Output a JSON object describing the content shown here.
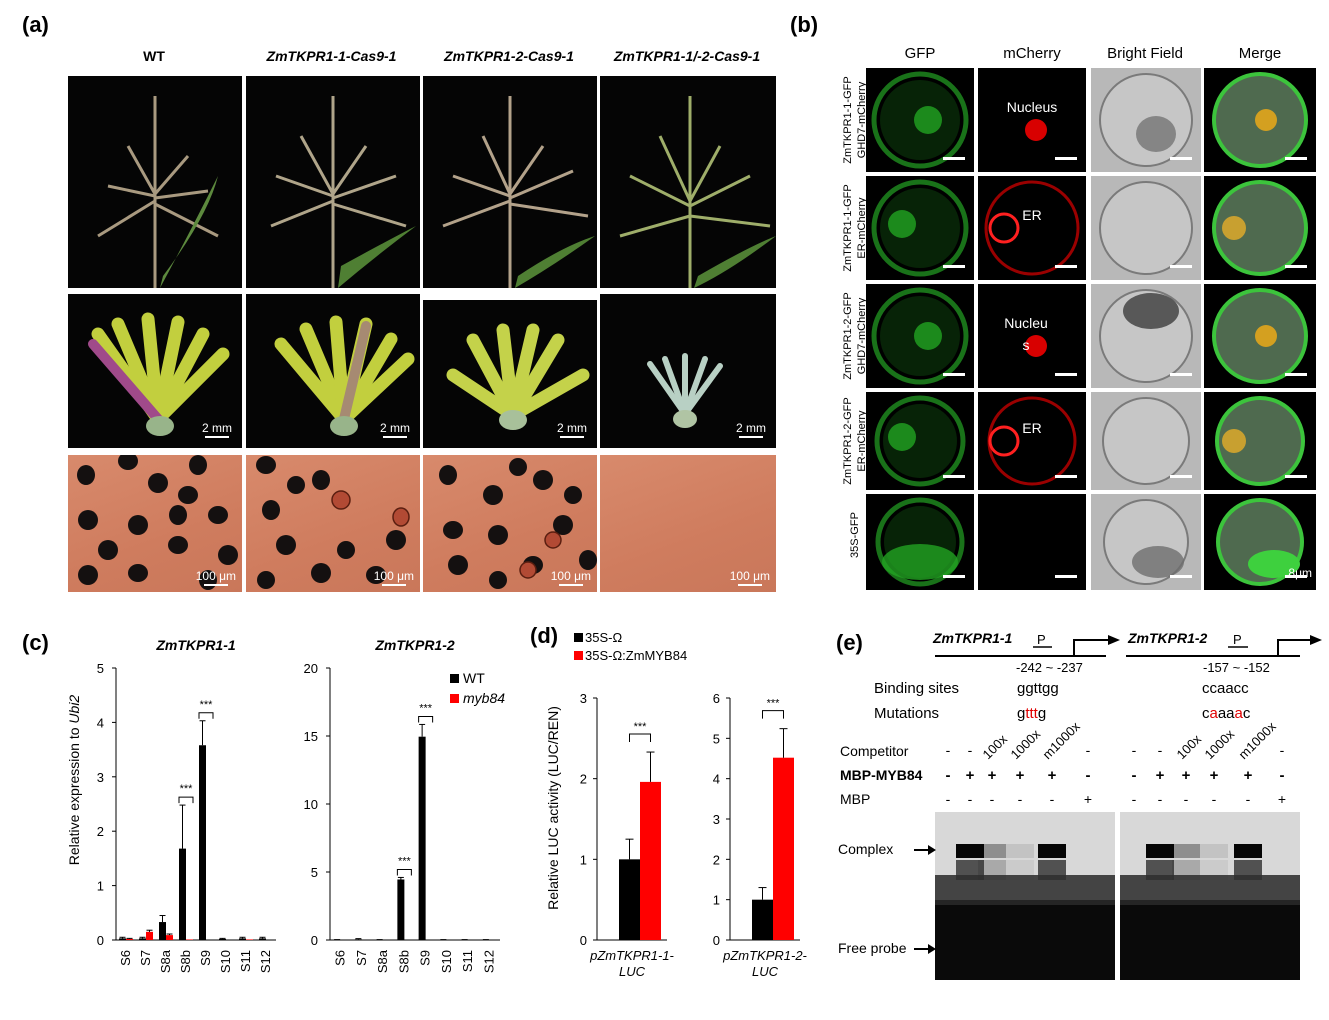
{
  "panel_a": {
    "label": "(a)",
    "columns": [
      "WT",
      "ZmTKPR1-1-Cas9-1",
      "ZmTKPR1-2-Cas9-1",
      "ZmTKPR1-1/-2-Cas9-1"
    ],
    "scale_mm": "2 mm",
    "scale_um": "100 μm"
  },
  "panel_b": {
    "label": "(b)",
    "columns": [
      "GFP",
      "mCherry",
      "Bright Field",
      "Merge"
    ],
    "rows": [
      {
        "line1": "ZmTKPR1-1-GFP",
        "line2": "GHD7-mCherry",
        "mcherry_text": "Nucleus"
      },
      {
        "line1": "ZmTKPR1-1-GFP",
        "line2": "ER-mCherry",
        "mcherry_text": "ER"
      },
      {
        "line1": "ZmTKPR1-2-GFP",
        "line2": "GHD7-mCherry",
        "mcherry_text": "Nucleu\ns"
      },
      {
        "line1": "ZmTKPR1-2-GFP",
        "line2": "ER-mCherry",
        "mcherry_text": "ER"
      },
      {
        "line1": "35S-GFP",
        "line2": "",
        "mcherry_text": ""
      }
    ],
    "scale_text": "8μm"
  },
  "panel_c": {
    "label": "(c)",
    "ylabel_prefix": "Relative expression to ",
    "ylabel_gene": "Ubi2",
    "legend": [
      "WT",
      "myb84"
    ],
    "significance": "***"
  },
  "panel_d": {
    "label": "(d)",
    "legend": [
      "35S-Ω",
      "35S-Ω:ZmMYB84"
    ],
    "ylabel": "Relative LUC activity  (LUC/REN)",
    "significance": "***"
  },
  "panel_e": {
    "label": "(e)",
    "genes": [
      {
        "name": "ZmTKPR1-1",
        "position": "-242 ~ -237",
        "site": "ggttgg",
        "mutation": [
          "g",
          "ttt",
          "g"
        ]
      },
      {
        "name": "ZmTKPR1-2",
        "position": "-157 ~ -152",
        "site": "ccaacc",
        "mutation": [
          "c",
          "a",
          "aa",
          "a",
          "c"
        ]
      }
    ],
    "p_label": "P",
    "binding_label": "Binding sites",
    "mutation_label": "Mutations",
    "row_labels": [
      "Competitor",
      "MBP-MYB84",
      "MBP"
    ],
    "competitor": [
      "-",
      "-",
      "100x",
      "1000x",
      "m1000x",
      "-"
    ],
    "mbp_myb84": [
      "-",
      "+",
      "+",
      "+",
      "+",
      "-"
    ],
    "mbp": [
      "-",
      "-",
      "-",
      "-",
      "-",
      "+"
    ],
    "complex_label": "Complex",
    "free_probe_label": "Free probe"
  },
  "chart_data": [
    {
      "type": "bar",
      "title": "ZmTKPR1-1",
      "categories": [
        "S6",
        "S7",
        "S8a",
        "S8b",
        "S9",
        "S10",
        "S11",
        "S12"
      ],
      "series": [
        {
          "name": "WT",
          "values": [
            0.03,
            0.03,
            0.33,
            1.68,
            3.58,
            0.02,
            0.03,
            0.03
          ],
          "errors": [
            0.02,
            0.02,
            0.12,
            0.8,
            0.45,
            0.01,
            0.02,
            0.02
          ]
        },
        {
          "name": "myb84",
          "values": [
            0.02,
            0.15,
            0.09,
            0.01,
            0.0,
            0.0,
            0.01,
            0.0
          ],
          "errors": [
            0.01,
            0.03,
            0.02,
            0.0,
            0.0,
            0.0,
            0.0,
            0.0
          ]
        }
      ],
      "ylim": [
        0,
        5
      ],
      "yticks": [
        0,
        1,
        2,
        3,
        4,
        5
      ],
      "significance": [
        {
          "category": "S8b",
          "text": "***"
        },
        {
          "category": "S9",
          "text": "***"
        }
      ]
    },
    {
      "type": "bar",
      "title": "ZmTKPR1-2",
      "categories": [
        "S6",
        "S7",
        "S8a",
        "S8b",
        "S9",
        "S10",
        "S11",
        "S12"
      ],
      "series": [
        {
          "name": "WT",
          "values": [
            0.02,
            0.05,
            0.02,
            4.45,
            14.95,
            0.02,
            0.02,
            0.02
          ],
          "errors": [
            0.01,
            0.05,
            0.01,
            0.15,
            0.9,
            0.01,
            0.01,
            0.01
          ]
        },
        {
          "name": "myb84",
          "values": [
            0.0,
            0.0,
            0.0,
            0.0,
            0.0,
            0.0,
            0.0,
            0.0
          ],
          "errors": [
            0,
            0,
            0,
            0,
            0,
            0,
            0,
            0
          ]
        }
      ],
      "ylim": [
        0,
        20
      ],
      "yticks": [
        0,
        5,
        10,
        15,
        20
      ],
      "significance": [
        {
          "category": "S8b",
          "text": "***"
        },
        {
          "category": "S9",
          "text": "***"
        }
      ]
    },
    {
      "type": "bar",
      "categories": [
        "pZmTKPR1-1-\nLUC"
      ],
      "series": [
        {
          "name": "35S-Ω",
          "values": [
            1.0
          ],
          "errors": [
            0.25
          ]
        },
        {
          "name": "35S-Ω:ZmMYB84",
          "values": [
            1.96
          ],
          "errors": [
            0.37
          ]
        }
      ],
      "ylim": [
        0,
        3
      ],
      "yticks": [
        0,
        1,
        2,
        3
      ],
      "significance": [
        {
          "text": "***"
        }
      ]
    },
    {
      "type": "bar",
      "categories": [
        "pZmTKPR1-2-\nLUC"
      ],
      "series": [
        {
          "name": "35S-Ω",
          "values": [
            1.0
          ],
          "errors": [
            0.3
          ]
        },
        {
          "name": "35S-Ω:ZmMYB84",
          "values": [
            4.52
          ],
          "errors": [
            0.72
          ]
        }
      ],
      "ylim": [
        0,
        6
      ],
      "yticks": [
        0,
        1,
        2,
        3,
        4,
        5,
        6
      ],
      "significance": [
        {
          "text": "***"
        }
      ]
    }
  ],
  "colors": {
    "wt": "#000000",
    "myb84": "#ff0000",
    "mutation_red": "#e00000"
  }
}
